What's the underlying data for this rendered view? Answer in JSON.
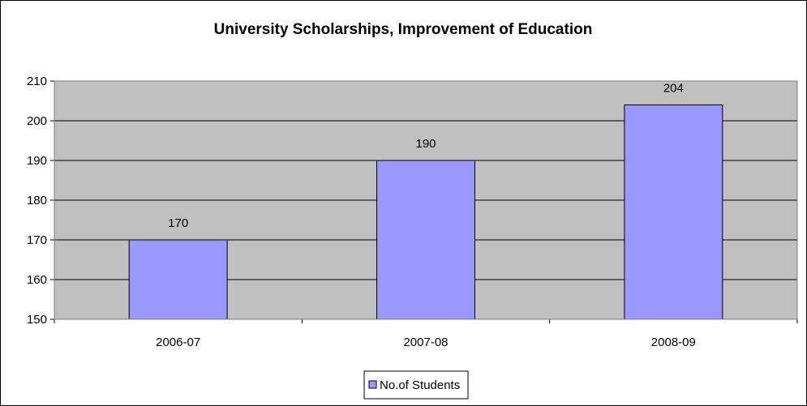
{
  "chart_data": {
    "type": "bar",
    "title": "University Scholarships, Improvement of Education",
    "xlabel": "",
    "ylabel": "",
    "categories": [
      "2006-07",
      "2007-08",
      "2008-09"
    ],
    "series": [
      {
        "name": "No.of Students",
        "values": [
          170,
          190,
          204
        ]
      }
    ],
    "ylim": [
      150,
      210
    ],
    "yticks": [
      150,
      160,
      170,
      180,
      190,
      200,
      210
    ],
    "grid": true,
    "legend": "bottom-center",
    "colors": {
      "plot_background": "#c0c0c0",
      "bar_fill": "#9999ff",
      "bar_stroke": "#000000",
      "gridline": "#000000"
    }
  }
}
